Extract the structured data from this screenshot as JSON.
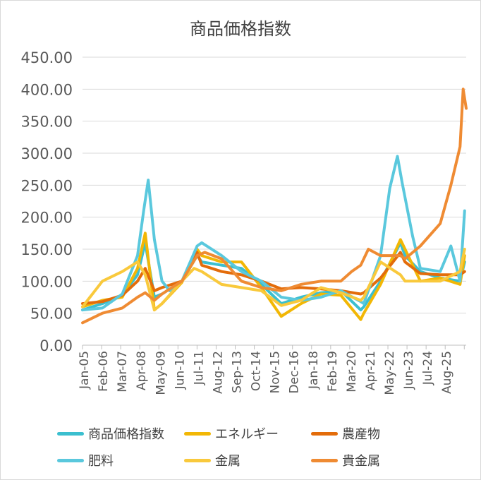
{
  "chart_data": {
    "type": "line",
    "title": "商品価格指数",
    "xlabel": "",
    "ylabel": "",
    "ylim": [
      0,
      450
    ],
    "yticks": [
      "0.00",
      "50.00",
      "100.00",
      "150.00",
      "200.00",
      "250.00",
      "300.00",
      "350.00",
      "400.00",
      "450.00"
    ],
    "x_tick_labels": [
      "Jan-05",
      "Feb-06",
      "Mar-07",
      "Apr-08",
      "May-09",
      "Jun-10",
      "Jul-11",
      "Aug-12",
      "Sep-13",
      "Oct-14",
      "Nov-15",
      "Dec-16",
      "Jan-18",
      "Feb-19",
      "Mar-20",
      "Apr-21",
      "May-22",
      "Jun-23",
      "Jul-24",
      "Aug-25"
    ],
    "x_range": [
      "2005-01",
      "2025-12"
    ],
    "grid": "horizontal",
    "legend_position": "bottom",
    "series": [
      {
        "name": "商品価格指数",
        "color": "#3bbfcf",
        "points": [
          [
            "2005-01",
            55
          ],
          [
            "2006-02",
            65
          ],
          [
            "2007-03",
            78
          ],
          [
            "2008-01",
            110
          ],
          [
            "2008-06",
            160
          ],
          [
            "2008-12",
            75
          ],
          [
            "2009-05",
            80
          ],
          [
            "2010-06",
            100
          ],
          [
            "2011-04",
            140
          ],
          [
            "2011-07",
            130
          ],
          [
            "2012-08",
            125
          ],
          [
            "2013-09",
            120
          ],
          [
            "2014-10",
            95
          ],
          [
            "2015-11",
            65
          ],
          [
            "2016-12",
            75
          ],
          [
            "2018-01",
            82
          ],
          [
            "2019-02",
            85
          ],
          [
            "2020-03",
            55
          ],
          [
            "2020-05",
            60
          ],
          [
            "2021-04",
            100
          ],
          [
            "2022-05",
            160
          ],
          [
            "2022-08",
            140
          ],
          [
            "2023-06",
            115
          ],
          [
            "2024-07",
            105
          ],
          [
            "2025-08",
            100
          ],
          [
            "2025-11",
            130
          ]
        ]
      },
      {
        "name": "エネルギー",
        "color": "#f2b705",
        "points": [
          [
            "2005-01",
            60
          ],
          [
            "2006-02",
            70
          ],
          [
            "2007-03",
            75
          ],
          [
            "2008-01",
            120
          ],
          [
            "2008-06",
            175
          ],
          [
            "2008-12",
            55
          ],
          [
            "2009-05",
            65
          ],
          [
            "2010-06",
            98
          ],
          [
            "2011-04",
            150
          ],
          [
            "2011-07",
            140
          ],
          [
            "2012-08",
            130
          ],
          [
            "2013-09",
            130
          ],
          [
            "2014-10",
            90
          ],
          [
            "2015-11",
            45
          ],
          [
            "2016-12",
            65
          ],
          [
            "2018-01",
            80
          ],
          [
            "2019-02",
            78
          ],
          [
            "2020-03",
            40
          ],
          [
            "2020-05",
            50
          ],
          [
            "2021-04",
            95
          ],
          [
            "2022-05",
            165
          ],
          [
            "2022-08",
            150
          ],
          [
            "2023-06",
            100
          ],
          [
            "2024-07",
            105
          ],
          [
            "2025-08",
            95
          ],
          [
            "2025-11",
            140
          ]
        ]
      },
      {
        "name": "農産物",
        "color": "#e36c0a",
        "points": [
          [
            "2005-01",
            65
          ],
          [
            "2006-02",
            68
          ],
          [
            "2007-03",
            78
          ],
          [
            "2008-01",
            100
          ],
          [
            "2008-06",
            120
          ],
          [
            "2008-12",
            85
          ],
          [
            "2009-05",
            90
          ],
          [
            "2010-06",
            100
          ],
          [
            "2011-04",
            145
          ],
          [
            "2011-07",
            125
          ],
          [
            "2012-08",
            115
          ],
          [
            "2013-09",
            110
          ],
          [
            "2014-10",
            100
          ],
          [
            "2015-11",
            88
          ],
          [
            "2016-12",
            90
          ],
          [
            "2018-01",
            88
          ],
          [
            "2019-02",
            85
          ],
          [
            "2020-03",
            80
          ],
          [
            "2020-05",
            82
          ],
          [
            "2021-04",
            105
          ],
          [
            "2022-05",
            145
          ],
          [
            "2022-08",
            130
          ],
          [
            "2023-06",
            112
          ],
          [
            "2024-07",
            110
          ],
          [
            "2025-08",
            110
          ],
          [
            "2025-11",
            115
          ]
        ]
      },
      {
        "name": "肥料",
        "color": "#5ac8dd",
        "points": [
          [
            "2005-01",
            55
          ],
          [
            "2006-02",
            58
          ],
          [
            "2007-03",
            80
          ],
          [
            "2008-01",
            140
          ],
          [
            "2008-05",
            210
          ],
          [
            "2008-08",
            258
          ],
          [
            "2008-12",
            165
          ],
          [
            "2009-05",
            100
          ],
          [
            "2009-10",
            85
          ],
          [
            "2010-06",
            100
          ],
          [
            "2011-04",
            155
          ],
          [
            "2011-07",
            160
          ],
          [
            "2012-08",
            140
          ],
          [
            "2013-09",
            115
          ],
          [
            "2014-10",
            100
          ],
          [
            "2015-11",
            75
          ],
          [
            "2016-12",
            70
          ],
          [
            "2018-01",
            75
          ],
          [
            "2019-02",
            85
          ],
          [
            "2020-03",
            68
          ],
          [
            "2020-05",
            65
          ],
          [
            "2021-04",
            140
          ],
          [
            "2021-10",
            245
          ],
          [
            "2022-03",
            295
          ],
          [
            "2022-06",
            255
          ],
          [
            "2023-01",
            170
          ],
          [
            "2023-06",
            120
          ],
          [
            "2024-07",
            115
          ],
          [
            "2025-02",
            155
          ],
          [
            "2025-08",
            100
          ],
          [
            "2025-11",
            210
          ]
        ]
      },
      {
        "name": "金属",
        "color": "#f9c93c",
        "points": [
          [
            "2005-01",
            60
          ],
          [
            "2006-02",
            100
          ],
          [
            "2007-03",
            115
          ],
          [
            "2008-01",
            130
          ],
          [
            "2008-06",
            110
          ],
          [
            "2008-12",
            55
          ],
          [
            "2009-05",
            65
          ],
          [
            "2010-06",
            100
          ],
          [
            "2011-02",
            120
          ],
          [
            "2011-07",
            115
          ],
          [
            "2012-08",
            95
          ],
          [
            "2013-09",
            90
          ],
          [
            "2014-10",
            85
          ],
          [
            "2015-11",
            62
          ],
          [
            "2016-12",
            70
          ],
          [
            "2018-01",
            90
          ],
          [
            "2019-02",
            82
          ],
          [
            "2020-03",
            70
          ],
          [
            "2020-05",
            75
          ],
          [
            "2021-04",
            130
          ],
          [
            "2022-05",
            110
          ],
          [
            "2022-08",
            100
          ],
          [
            "2023-06",
            100
          ],
          [
            "2024-07",
            100
          ],
          [
            "2025-08",
            115
          ],
          [
            "2025-11",
            150
          ]
        ]
      },
      {
        "name": "貴金属",
        "color": "#ef8b33",
        "points": [
          [
            "2005-01",
            35
          ],
          [
            "2006-02",
            50
          ],
          [
            "2007-03",
            58
          ],
          [
            "2008-01",
            75
          ],
          [
            "2008-06",
            82
          ],
          [
            "2008-12",
            70
          ],
          [
            "2009-05",
            80
          ],
          [
            "2010-06",
            100
          ],
          [
            "2011-04",
            140
          ],
          [
            "2011-09",
            145
          ],
          [
            "2012-08",
            135
          ],
          [
            "2013-09",
            100
          ],
          [
            "2014-10",
            90
          ],
          [
            "2015-11",
            85
          ],
          [
            "2016-12",
            95
          ],
          [
            "2018-01",
            100
          ],
          [
            "2019-02",
            100
          ],
          [
            "2019-09",
            115
          ],
          [
            "2020-03",
            125
          ],
          [
            "2020-08",
            150
          ],
          [
            "2021-04",
            140
          ],
          [
            "2022-05",
            140
          ],
          [
            "2022-08",
            135
          ],
          [
            "2023-06",
            155
          ],
          [
            "2024-07",
            190
          ],
          [
            "2025-02",
            250
          ],
          [
            "2025-08",
            310
          ],
          [
            "2025-10",
            400
          ],
          [
            "2025-12",
            370
          ]
        ]
      }
    ]
  }
}
